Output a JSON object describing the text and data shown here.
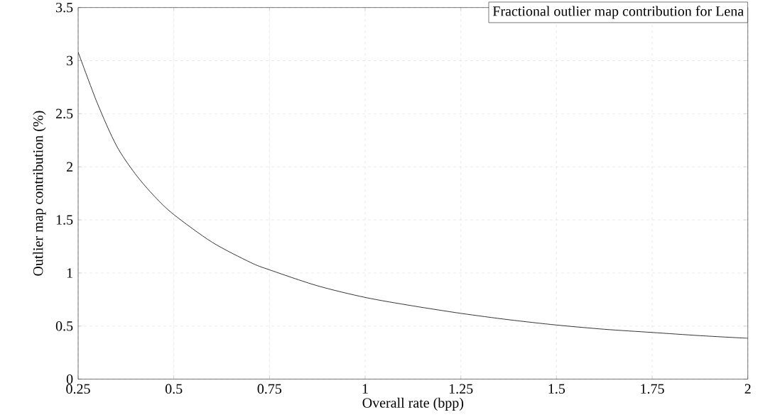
{
  "chart_data": {
    "type": "line",
    "title": "Fractional outlier map contribution for Lena",
    "xlabel": "Overall rate (bpp)",
    "ylabel": "Outlier map contribution (%)",
    "x": [
      0.25,
      0.3,
      0.35,
      0.4,
      0.45,
      0.5,
      0.6,
      0.7,
      0.75,
      0.875,
      1,
      1.125,
      1.25,
      1.375,
      1.5,
      1.625,
      1.75,
      1.875,
      2
    ],
    "series": [
      {
        "color": "#000000",
        "values": [
          3.08,
          2.6,
          2.2,
          1.93,
          1.72,
          1.55,
          1.29,
          1.1,
          1.03,
          0.88,
          0.77,
          0.69,
          0.62,
          0.56,
          0.51,
          0.47,
          0.44,
          0.41,
          0.385
        ]
      }
    ],
    "xlim": [
      0.25,
      2
    ],
    "ylim": [
      0,
      3.5
    ],
    "xticks": [
      0.25,
      0.5,
      0.75,
      1,
      1.25,
      1.5,
      1.75,
      2
    ],
    "yticks": [
      0,
      0.5,
      1,
      1.5,
      2,
      2.5,
      3,
      3.5
    ],
    "grid": true,
    "line_style": "solid",
    "marker": "none"
  }
}
